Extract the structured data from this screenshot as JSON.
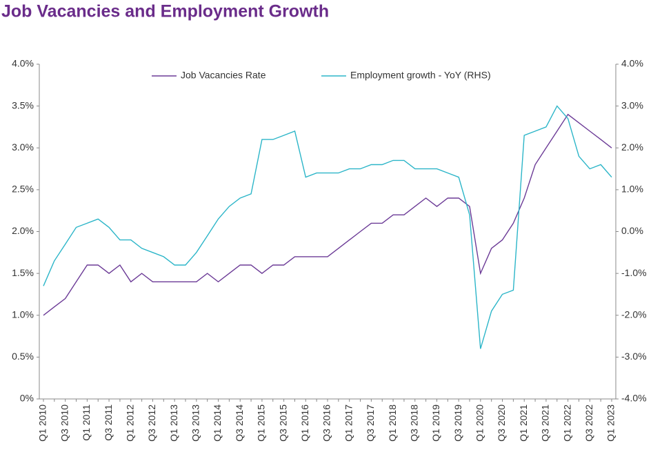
{
  "chart_data": {
    "type": "line",
    "title": "Job Vacancies and Employment Growth",
    "categories": [
      "Q1 2010",
      null,
      "Q3 2010",
      null,
      "Q1 2011",
      null,
      "Q3 2011",
      null,
      "Q1 2012",
      null,
      "Q3 2012",
      null,
      "Q1 2013",
      null,
      "Q3 2013",
      null,
      "Q1 2014",
      null,
      "Q3 2014",
      null,
      "Q1 2015",
      null,
      "Q3 2015",
      null,
      "Q1 2016",
      null,
      "Q3 2016",
      null,
      "Q1 2017",
      null,
      "Q3 2017",
      null,
      "Q1 2018",
      null,
      "Q3 2018",
      null,
      "Q1 2019",
      null,
      "Q3 2019",
      null,
      "Q1 2020",
      null,
      "Q3 2020",
      null,
      "Q1 2021",
      null,
      "Q3 2021",
      null,
      "Q1 2022",
      null,
      "Q3 2022",
      null,
      "Q1 2023"
    ],
    "series": [
      {
        "name": "Job Vacancies Rate",
        "color": "#6b3a96",
        "values": [
          1.0,
          1.1,
          1.2,
          1.4,
          1.6,
          1.6,
          1.5,
          1.6,
          1.4,
          1.5,
          1.4,
          1.4,
          1.4,
          1.4,
          1.4,
          1.5,
          1.4,
          1.5,
          1.6,
          1.6,
          1.5,
          1.6,
          1.6,
          1.7,
          1.7,
          1.7,
          1.7,
          1.8,
          1.9,
          2.0,
          2.1,
          2.1,
          2.2,
          2.2,
          2.3,
          2.4,
          2.3,
          2.4,
          2.4,
          2.3,
          1.5,
          1.8,
          1.9,
          2.1,
          2.4,
          2.8,
          3.0,
          3.2,
          3.4,
          3.3,
          3.2,
          3.1,
          3.0
        ]
      },
      {
        "name": "Employment growth - YoY (RHS)",
        "color": "#2bb5c8",
        "axis": "y2",
        "values": [
          -1.3,
          -0.7,
          -0.3,
          0.1,
          0.2,
          0.3,
          0.1,
          -0.2,
          -0.2,
          -0.4,
          -0.5,
          -0.6,
          -0.8,
          -0.8,
          -0.5,
          -0.1,
          0.3,
          0.6,
          0.8,
          0.9,
          2.2,
          2.2,
          2.3,
          2.4,
          1.3,
          1.4,
          1.4,
          1.4,
          1.5,
          1.5,
          1.6,
          1.6,
          1.7,
          1.7,
          1.5,
          1.5,
          1.5,
          1.4,
          1.3,
          0.4,
          -2.8,
          -1.9,
          -1.5,
          -1.4,
          2.3,
          2.4,
          2.5,
          3.0,
          2.7,
          1.8,
          1.5,
          1.6,
          1.3
        ]
      }
    ],
    "ylim": [
      0,
      4
    ],
    "yticks": [
      {
        "value": 0,
        "label": "0%"
      },
      {
        "value": 0.5,
        "label": "0.5%"
      },
      {
        "value": 1,
        "label": "1.0%"
      },
      {
        "value": 1.5,
        "label": "1.5%"
      },
      {
        "value": 2,
        "label": "2.0%"
      },
      {
        "value": 2.5,
        "label": "2.5%"
      },
      {
        "value": 3,
        "label": "3.0%"
      },
      {
        "value": 3.5,
        "label": "3.5%"
      },
      {
        "value": 4,
        "label": "4.0%"
      }
    ],
    "y2lim": [
      -4,
      4
    ],
    "y2ticks": [
      {
        "value": -4,
        "label": "-4.0%"
      },
      {
        "value": -3,
        "label": "-3.0%"
      },
      {
        "value": -2,
        "label": "-2.0%"
      },
      {
        "value": -1,
        "label": "-1.0%"
      },
      {
        "value": 0,
        "label": "0.0%"
      },
      {
        "value": 1,
        "label": "1.0%"
      },
      {
        "value": 2,
        "label": "2.0%"
      },
      {
        "value": 3,
        "label": "3.0%"
      },
      {
        "value": 4,
        "label": "4.0%"
      }
    ],
    "grid": false,
    "legend": "top"
  }
}
